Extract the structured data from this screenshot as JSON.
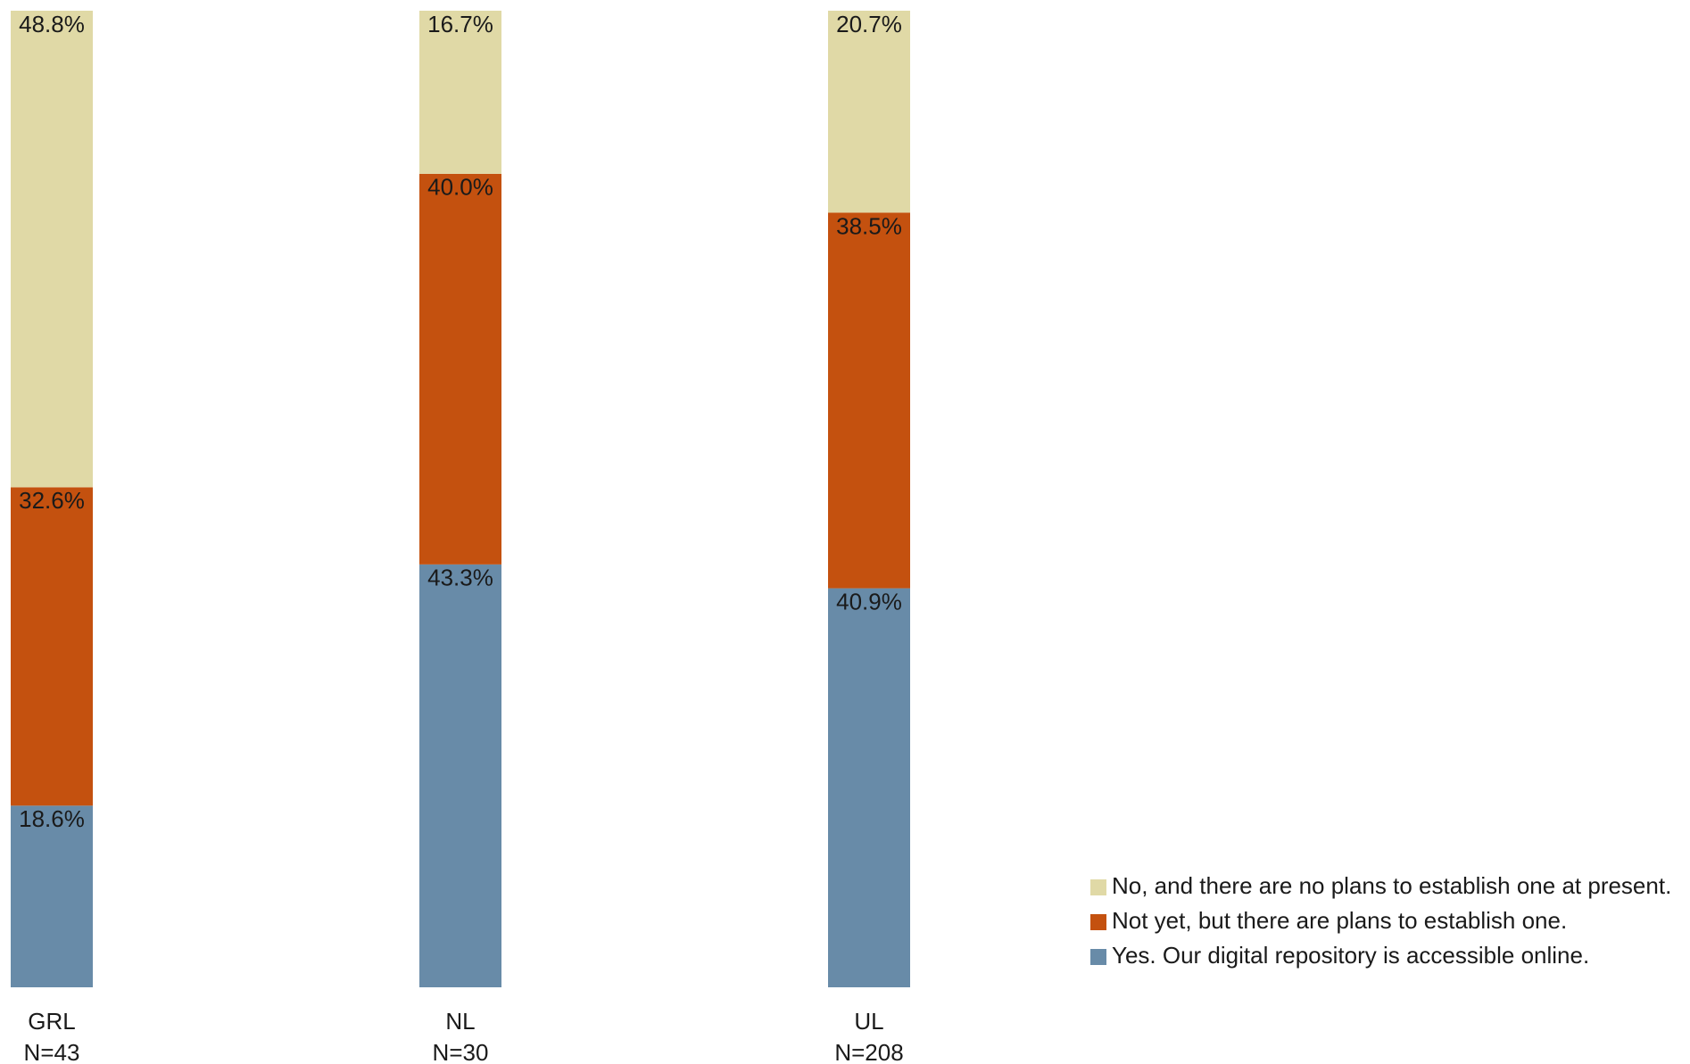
{
  "chart_data": {
    "type": "bar",
    "stacked": true,
    "percent": true,
    "categories": [
      "GRL",
      "NL",
      "UL"
    ],
    "category_sublabels": [
      "N=43",
      "N=30",
      "N=208"
    ],
    "ylim": [
      0,
      100
    ],
    "grid": false,
    "legend_position": "bottom-right",
    "series": [
      {
        "name": "Yes. Our digital repository is accessible online.",
        "values": [
          18.6,
          43.3,
          40.9
        ],
        "labels": [
          "18.6%",
          "43.3%",
          "40.9%"
        ],
        "color": "#688ba8"
      },
      {
        "name": "Not yet, but there are plans to establish one.",
        "values": [
          32.6,
          40.0,
          38.5
        ],
        "labels": [
          "32.6%",
          "40.0%",
          "38.5%"
        ],
        "color": "#c4510f"
      },
      {
        "name": "No, and there are no plans to establish one at present.",
        "values": [
          48.8,
          16.7,
          20.7
        ],
        "labels": [
          "48.8%",
          "16.7%",
          "20.7%"
        ],
        "color": "#e0d9a6"
      }
    ]
  }
}
